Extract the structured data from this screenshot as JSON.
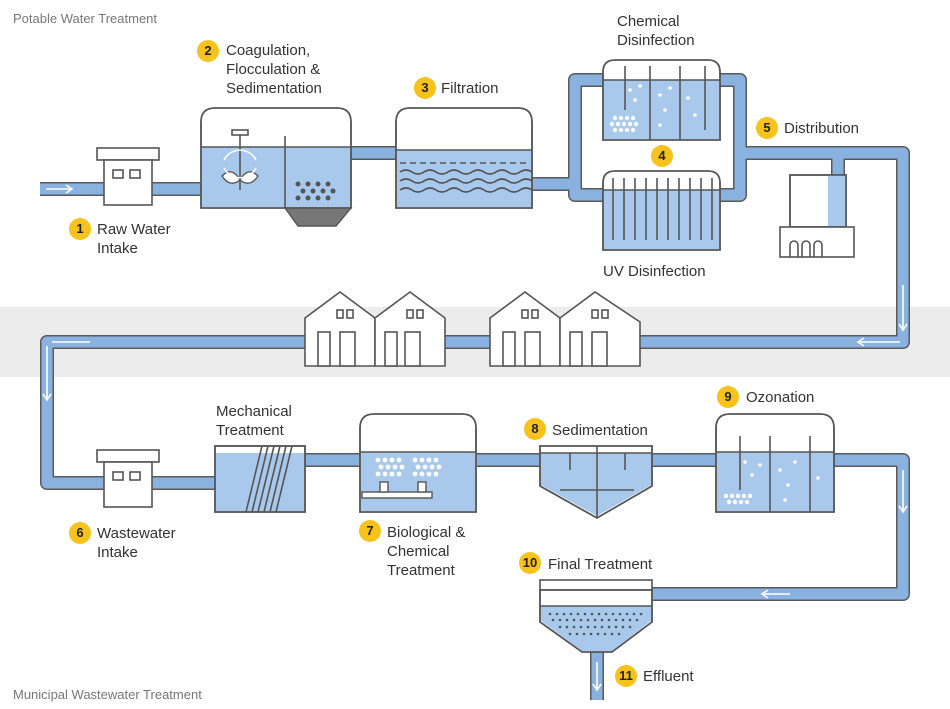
{
  "sections": {
    "potable_title": "Potable Water Treatment",
    "wastewater_title": "Municipal Wastewater Treatment"
  },
  "steps": [
    {
      "num": "1",
      "label_line1": "Raw Water",
      "label_line2": "Intake"
    },
    {
      "num": "2",
      "label_line1": "Coagulation,",
      "label_line2": "Flocculation &",
      "label_line3": "Sedimentation"
    },
    {
      "num": "3",
      "label_line1": "Filtration"
    },
    {
      "num": "4",
      "label_top_line1": "Chemical",
      "label_top_line2": "Disinfection",
      "label_bottom": "UV Disinfection"
    },
    {
      "num": "5",
      "label_line1": "Distribution"
    },
    {
      "num": "6",
      "label_line1": "Wastewater",
      "label_line2": "Intake"
    },
    {
      "num": "7",
      "label_line1": "Biological &",
      "label_line2": "Chemical",
      "label_line3": "Treatment"
    },
    {
      "num": "8",
      "label_line1": "Sedimentation"
    },
    {
      "num": "9",
      "label_line1": "Ozonation"
    },
    {
      "num": "10",
      "label_line1": "Final Treatment"
    },
    {
      "num": "11",
      "label_line1": "Effluent"
    }
  ],
  "mechanical": {
    "line1": "Mechanical",
    "line2": "Treatment"
  },
  "colors": {
    "pipe": "#7fa8d8",
    "water": "#a9c9ec",
    "outline": "#5a5a5a",
    "badge": "#f6c21b",
    "band": "#ececec"
  }
}
